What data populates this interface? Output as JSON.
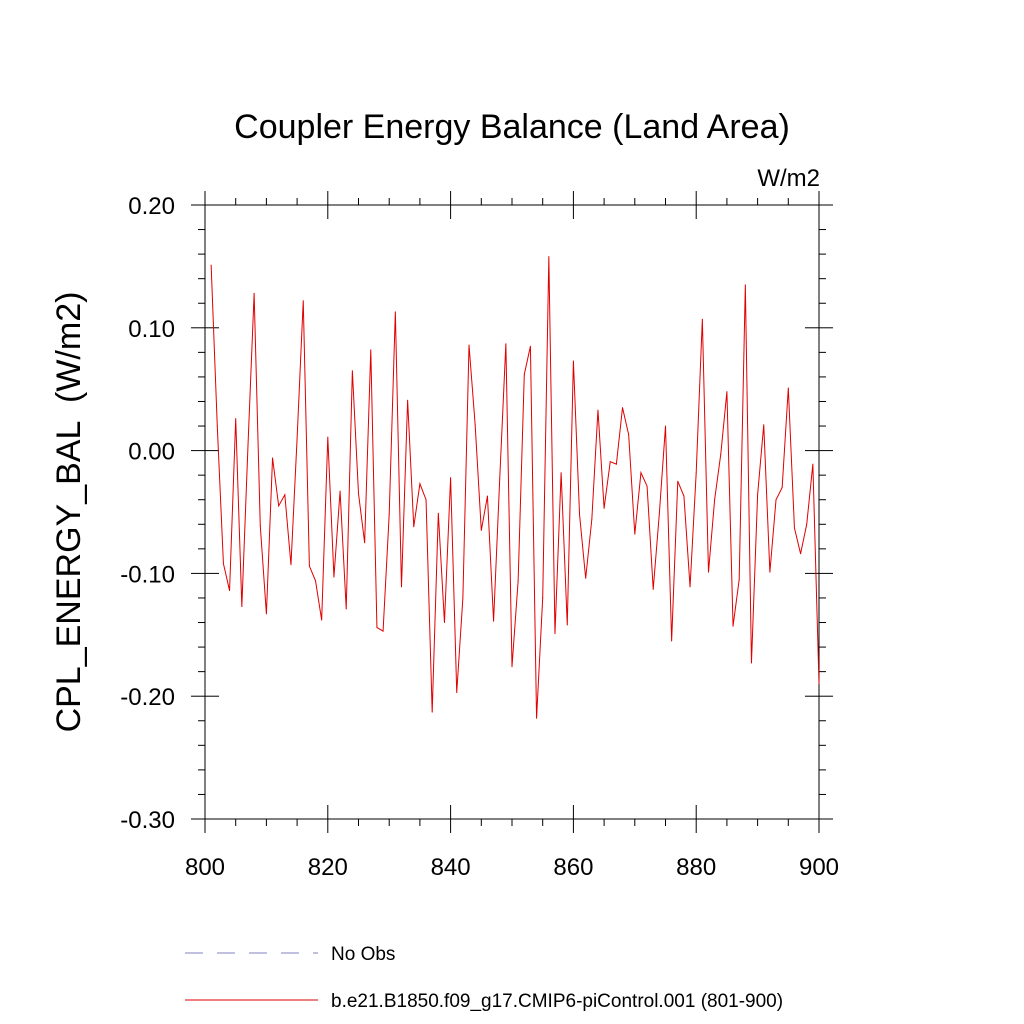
{
  "chart_data": {
    "type": "line",
    "title": "Coupler Energy Balance (Land Area)",
    "units_label": "W/m2",
    "ylabel": "CPL_ENERGY_BAL  (W/m2)",
    "xlabel": "",
    "xlim": [
      800,
      900
    ],
    "ylim": [
      -0.3,
      0.2
    ],
    "xticks": [
      800,
      820,
      840,
      860,
      880,
      900
    ],
    "xtick_labels": [
      "800",
      "820",
      "840",
      "860",
      "880",
      "900"
    ],
    "yticks": [
      0.2,
      0.1,
      0.0,
      -0.1,
      -0.2,
      -0.3
    ],
    "ytick_labels": [
      "0.20",
      "0.10",
      "0.00",
      "-0.10",
      "-0.20",
      "-0.30"
    ],
    "legend": [
      {
        "label": "No Obs",
        "style": "dashed",
        "color": "#8080c0"
      },
      {
        "label": "b.e21.B1850.f09_g17.CMIP6-piControl.001 (801-900)",
        "style": "solid",
        "color": "#e00000"
      }
    ],
    "series": [
      {
        "name": "b.e21.B1850.f09_g17.CMIP6-piControl.001 (801-900)",
        "color": "#e00000",
        "x": [
          801,
          802,
          803,
          804,
          805,
          806,
          807,
          808,
          809,
          810,
          811,
          812,
          813,
          814,
          815,
          816,
          817,
          818,
          819,
          820,
          821,
          822,
          823,
          824,
          825,
          826,
          827,
          828,
          829,
          830,
          831,
          832,
          833,
          834,
          835,
          836,
          837,
          838,
          839,
          840,
          841,
          842,
          843,
          844,
          845,
          846,
          847,
          848,
          849,
          850,
          851,
          852,
          853,
          854,
          855,
          856,
          857,
          858,
          859,
          860,
          861,
          862,
          863,
          864,
          865,
          866,
          867,
          868,
          869,
          870,
          871,
          872,
          873,
          874,
          875,
          876,
          877,
          878,
          879,
          880,
          881,
          882,
          883,
          884,
          885,
          886,
          887,
          888,
          889,
          890,
          891,
          892,
          893,
          894,
          895,
          896,
          897,
          898,
          899,
          900
        ],
        "values": [
          0.151,
          0.02,
          -0.092,
          -0.114,
          0.026,
          -0.127,
          0.004,
          0.128,
          -0.061,
          -0.133,
          -0.006,
          -0.045,
          -0.036,
          -0.093,
          0.01,
          0.122,
          -0.094,
          -0.106,
          -0.138,
          0.011,
          -0.103,
          -0.033,
          -0.129,
          0.065,
          -0.035,
          -0.075,
          0.082,
          -0.144,
          -0.147,
          -0.052,
          0.113,
          -0.111,
          0.041,
          -0.062,
          -0.027,
          -0.04,
          -0.213,
          -0.051,
          -0.14,
          -0.022,
          -0.197,
          -0.12,
          0.086,
          0.021,
          -0.065,
          -0.037,
          -0.139,
          -0.023,
          0.087,
          -0.176,
          -0.106,
          0.062,
          0.085,
          -0.218,
          -0.12,
          0.158,
          -0.149,
          -0.018,
          -0.142,
          0.073,
          -0.052,
          -0.104,
          -0.056,
          0.033,
          -0.047,
          -0.009,
          -0.011,
          0.035,
          0.013,
          -0.068,
          -0.018,
          -0.029,
          -0.113,
          -0.051,
          0.02,
          -0.155,
          -0.025,
          -0.037,
          -0.111,
          -0.018,
          0.107,
          -0.099,
          -0.04,
          -0.003,
          0.048,
          -0.143,
          -0.105,
          0.135,
          -0.173,
          -0.036,
          0.021,
          -0.099,
          -0.04,
          -0.03,
          0.051,
          -0.063,
          -0.084,
          -0.06,
          -0.011,
          -0.19
        ]
      }
    ]
  }
}
